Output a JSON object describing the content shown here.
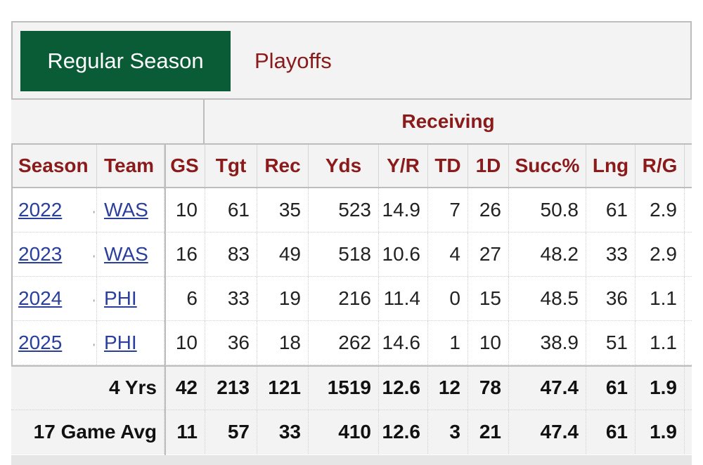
{
  "tabs": {
    "regular_label": "Regular Season",
    "playoffs_label": "Playoffs"
  },
  "group_header": {
    "receiving_label": "Receiving"
  },
  "columns": [
    "Season",
    "Team",
    "GS",
    "Tgt",
    "Rec",
    "Yds",
    "Y/R",
    "TD",
    "1D",
    "Succ%",
    "Lng",
    "R/G"
  ],
  "rows": [
    [
      "2022",
      "WAS",
      "10",
      "61",
      "35",
      "523",
      "14.9",
      "7",
      "26",
      "50.8",
      "61",
      "2.9"
    ],
    [
      "2023",
      "WAS",
      "16",
      "83",
      "49",
      "518",
      "10.6",
      "4",
      "27",
      "48.2",
      "33",
      "2.9"
    ],
    [
      "2024",
      "PHI",
      "6",
      "33",
      "19",
      "216",
      "11.4",
      "0",
      "15",
      "48.5",
      "36",
      "1.1"
    ],
    [
      "2025",
      "PHI",
      "10",
      "36",
      "18",
      "262",
      "14.6",
      "1",
      "10",
      "38.9",
      "51",
      "1.1"
    ]
  ],
  "totals": [
    [
      "4 Yrs",
      "42",
      "213",
      "121",
      "1519",
      "12.6",
      "12",
      "78",
      "47.4",
      "61",
      "1.9"
    ],
    [
      "17 Game Avg",
      "11",
      "57",
      "33",
      "410",
      "12.6",
      "3",
      "21",
      "47.4",
      "61",
      "1.9"
    ]
  ],
  "colors": {
    "accent_green": "#0a5c36",
    "header_red": "#8b1a1a",
    "link_blue": "#2a3f9d",
    "header_bg": "#f3f3f3"
  }
}
